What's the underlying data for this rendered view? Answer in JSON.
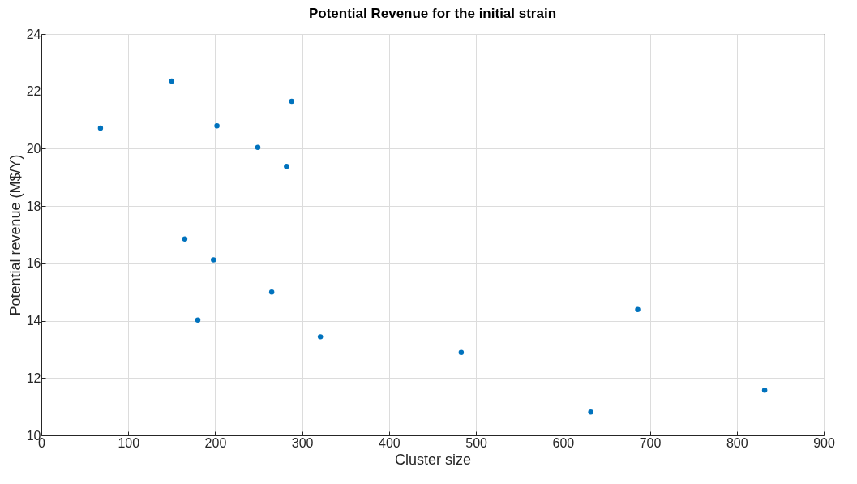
{
  "chart_data": {
    "type": "scatter",
    "title": "Potential Revenue for the initial strain",
    "xlabel": "Cluster size",
    "ylabel": "Potential revenue (M$/Y)",
    "x": [
      68,
      150,
      202,
      249,
      288,
      282,
      165,
      198,
      265,
      180,
      321,
      483,
      632,
      686,
      832
    ],
    "series": [
      {
        "color": "#0072bd",
        "values": [
          20.72,
          22.36,
          20.8,
          20.05,
          21.65,
          19.38,
          16.85,
          16.12,
          15.0,
          14.02,
          13.44,
          12.89,
          10.81,
          14.39,
          11.58
        ]
      }
    ],
    "xlim": [
      0,
      900
    ],
    "xticks": [
      0,
      100,
      200,
      300,
      400,
      500,
      600,
      700,
      800,
      900
    ],
    "ylim": [
      10,
      24
    ],
    "yticks": [
      10,
      12,
      14,
      16,
      18,
      20,
      22,
      24
    ],
    "grid": true,
    "marker": "circle"
  }
}
